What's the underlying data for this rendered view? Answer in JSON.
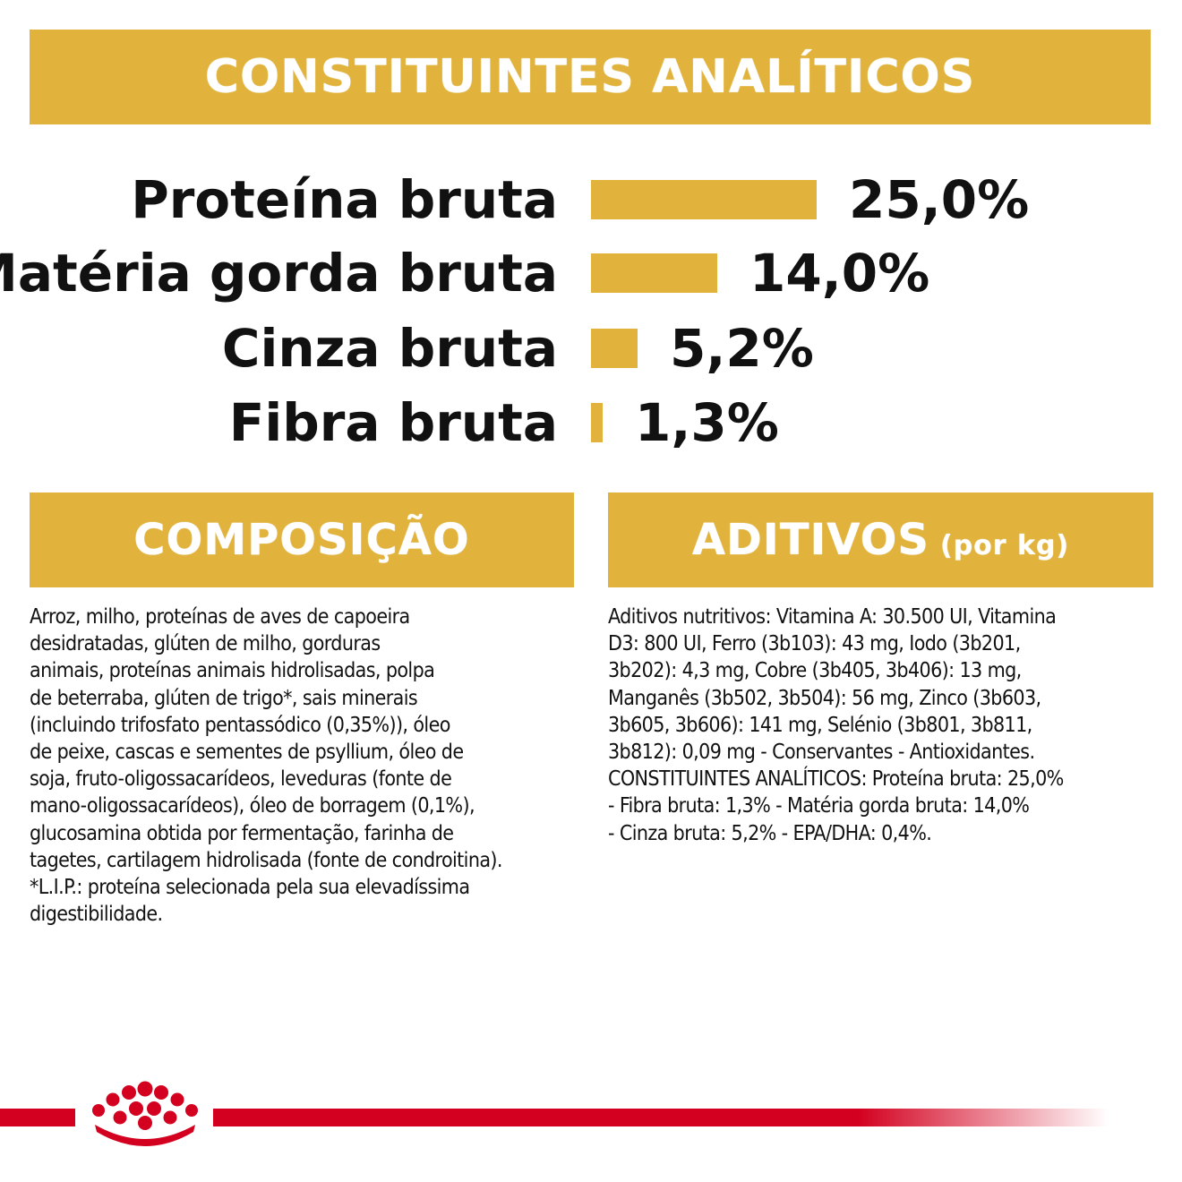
{
  "header": {
    "title": "CONSTITUINTES ANALÍTICOS"
  },
  "nutrients": [
    {
      "label": "Proteína bruta",
      "value": "25,0%",
      "amount": 25.0
    },
    {
      "label": "Matéria gorda bruta",
      "value": "14,0%",
      "amount": 14.0
    },
    {
      "label": "Cinza bruta",
      "value": "5,2%",
      "amount": 5.2
    },
    {
      "label": "Fibra bruta",
      "value": "1,3%",
      "amount": 1.3
    }
  ],
  "composition": {
    "title": "COMPOSIÇÃO",
    "text": "Arroz, milho, proteínas de aves de capoeira\ndesidratadas, glúten de milho, gorduras\nanimais, proteínas animais hidrolisadas, polpa\nde beterraba, glúten de trigo*, sais minerais\n(incluindo trifosfato pentassódico (0,35%)), óleo\nde peixe, cascas e sementes de psyllium, óleo de\nsoja, fruto-oligossacarídeos, leveduras (fonte de\nmano-oligossacarídeos), óleo de borragem (0,1%),\nglucosamina obtida por fermentação, farinha de\ntagetes, cartilagem hidrolisada (fonte de condroitina).\n*L.I.P.: proteína selecionada pela sua elevadíssima\ndigestibilidade."
  },
  "additives": {
    "title": "ADITIVOS",
    "subtitle": "(por kg)",
    "text": "Aditivos nutritivos: Vitamina A: 30.500 UI, Vitamina\nD3: 800 UI, Ferro (3b103): 43 mg, Iodo (3b201,\n3b202): 4,3 mg, Cobre (3b405, 3b406): 13 mg,\nManganês (3b502, 3b504): 56 mg, Zinco (3b603,\n3b605, 3b606): 141 mg, Selénio (3b801, 3b811,\n3b812): 0,09 mg - Conservantes - Antioxidantes.\nCONSTITUINTES ANALÍTICOS: Proteína bruta: 25,0%\n- Fibra bruta: 1,3% - Matéria gorda bruta: 14,0%\n- Cinza bruta: 5,2% - EPA/DHA: 0,4%."
  },
  "colors": {
    "accent": "#e1b33d",
    "brand_red": "#d3001f"
  },
  "logo": {
    "icon": "royal-canin-crown-icon"
  }
}
